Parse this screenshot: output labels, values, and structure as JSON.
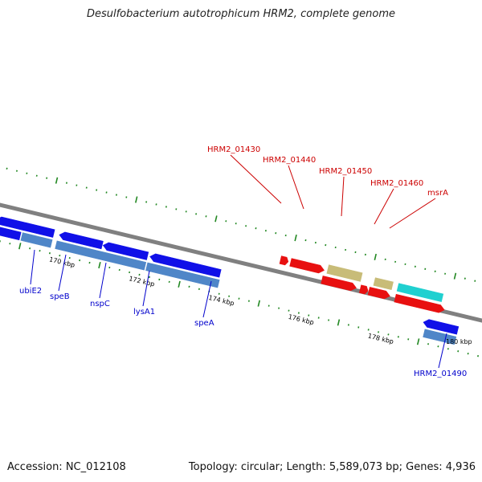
{
  "header": {
    "title": "Desulfobacterium autotrophicum HRM2, complete genome"
  },
  "footer": {
    "accession": "Accession: NC_012108",
    "summary": "Topology: circular; Length: 5,589,073 bp; Genes: 4,936"
  },
  "colors": {
    "red": "#e81010",
    "blue": "#1010e8",
    "steel": "#4f86c8",
    "khaki": "#c8bc78",
    "cyan": "#20d0d0",
    "purple": "#554499",
    "label_red": "#cc0000",
    "label_blue": "#0000cc",
    "tick_green": "#228822",
    "backbone": "#808080"
  },
  "scale_labels": [
    "170 kbp",
    "172 kbp",
    "174 kbp",
    "176 kbp",
    "178 kbp",
    "180 kbp"
  ],
  "gene_labels_top": [
    "HRM2_01430",
    "HRM2_01440",
    "HRM2_01450",
    "HRM2_01460",
    "msrA"
  ],
  "gene_labels_bottom": [
    "ubiE2",
    "speB",
    "nspC",
    "lysA1",
    "speA",
    "HRM2_01490"
  ]
}
